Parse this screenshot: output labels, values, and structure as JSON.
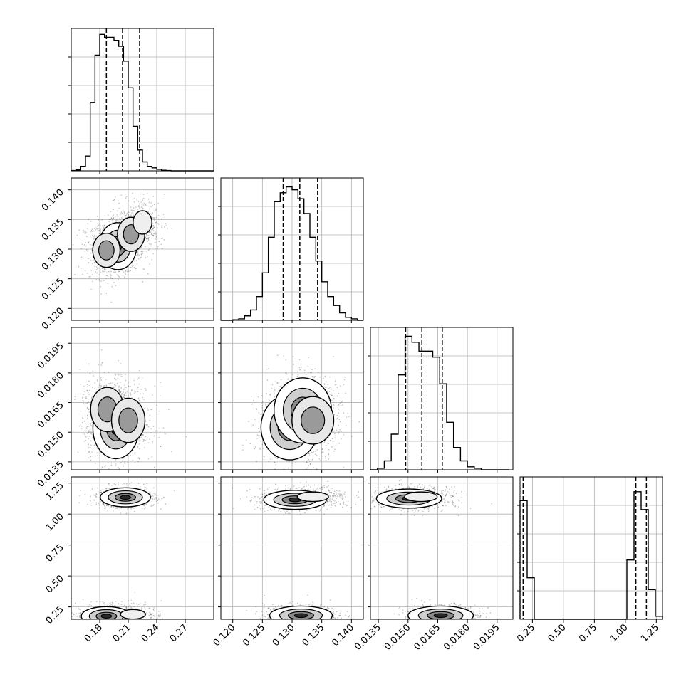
{
  "chart_data": {
    "type": "corner",
    "grid": true,
    "parameters": [
      {
        "range": [
          0.15,
          0.3
        ],
        "ticks": [
          0.18,
          0.21,
          0.24,
          0.27
        ],
        "tick_labels": [
          "0.18",
          "0.21",
          "0.24",
          "0.27"
        ],
        "quantiles": [
          0.187,
          0.204,
          0.222
        ],
        "histogram": {
          "edges": [
            0.15,
            0.155,
            0.16,
            0.165,
            0.17,
            0.175,
            0.18,
            0.185,
            0.19,
            0.195,
            0.2,
            0.205,
            0.21,
            0.215,
            0.22,
            0.225,
            0.23,
            0.235,
            0.24,
            0.245,
            0.25,
            0.255,
            0.26,
            0.265,
            0.27,
            0.275,
            0.28,
            0.285,
            0.29,
            0.295,
            0.3
          ],
          "counts": [
            0.01,
            0.03,
            0.15,
            0.5,
            2.3,
            3.9,
            4.6,
            4.5,
            4.5,
            4.4,
            4.2,
            3.7,
            2.8,
            1.5,
            0.7,
            0.3,
            0.15,
            0.1,
            0.05,
            0.02,
            0.01,
            0,
            0,
            0,
            0,
            0,
            0,
            0,
            0,
            0
          ],
          "ymax": 4.8
        }
      },
      {
        "range": [
          0.118,
          0.142
        ],
        "ticks": [
          0.12,
          0.125,
          0.13,
          0.135,
          0.14
        ],
        "tick_labels": [
          "0.120",
          "0.125",
          "0.130",
          "0.135",
          "0.140"
        ],
        "quantiles": [
          0.1285,
          0.1313,
          0.1343
        ],
        "histogram": {
          "edges": [
            0.118,
            0.119,
            0.12,
            0.121,
            0.122,
            0.123,
            0.124,
            0.125,
            0.126,
            0.127,
            0.128,
            0.129,
            0.13,
            0.131,
            0.132,
            0.133,
            0.134,
            0.135,
            0.136,
            0.137,
            0.138,
            0.139,
            0.14,
            0.141,
            0.142
          ],
          "counts": [
            0.0,
            0.0,
            0.02,
            0.05,
            0.15,
            0.35,
            0.8,
            1.6,
            2.8,
            4.0,
            4.3,
            4.5,
            4.4,
            4.1,
            3.6,
            2.8,
            2.0,
            1.3,
            0.8,
            0.5,
            0.25,
            0.1,
            0.05,
            0.0
          ],
          "ymax": 4.8
        }
      },
      {
        "range": [
          0.0131,
          0.0203
        ],
        "ticks": [
          0.0135,
          0.015,
          0.0165,
          0.018,
          0.0195
        ],
        "tick_labels": [
          "0.0135",
          "0.0150",
          "0.0165",
          "0.0180",
          "0.0195"
        ],
        "quantiles": [
          0.01488,
          0.0157,
          0.01673
        ],
        "histogram": {
          "edges": [
            0.0131,
            0.01345,
            0.0138,
            0.01415,
            0.0145,
            0.01485,
            0.0152,
            0.01555,
            0.0159,
            0.01625,
            0.0166,
            0.01695,
            0.0173,
            0.01765,
            0.018,
            0.01835,
            0.0187,
            0.01905,
            0.0194,
            0.01975,
            0.0201
          ],
          "counts": [
            0.0,
            0.05,
            0.3,
            1.2,
            3.2,
            4.5,
            4.3,
            4.0,
            4.0,
            3.8,
            2.9,
            1.6,
            0.75,
            0.3,
            0.1,
            0.05,
            0.0,
            0.0,
            0.0,
            0.0
          ],
          "ymax": 4.8
        }
      },
      {
        "range": [
          0.15,
          1.3
        ],
        "ticks": [
          0.25,
          0.5,
          0.75,
          1.0,
          1.25
        ],
        "tick_labels": [
          "0.25",
          "0.50",
          "0.75",
          "1.00",
          "1.25"
        ],
        "quantiles": [
          0.175,
          1.085,
          1.17
        ],
        "histogram": {
          "edges": [
            0.15,
            0.2075,
            0.265,
            0.3225,
            0.38,
            0.4375,
            0.495,
            0.5525,
            0.61,
            0.6675,
            0.725,
            0.7825,
            0.84,
            0.8975,
            0.955,
            1.0125,
            1.07,
            1.1275,
            1.185,
            1.2425,
            1.3
          ],
          "counts": [
            4.0,
            1.4,
            0,
            0,
            0,
            0,
            0,
            0,
            0,
            0,
            0,
            0,
            0,
            0,
            0,
            2.0,
            4.3,
            3.7,
            1.0,
            0.1
          ],
          "ymax": 4.8
        }
      }
    ],
    "pairs": [
      {
        "row": 1,
        "col": 0,
        "centers": [
          [
            0.199,
            0.1305,
            1.0
          ],
          [
            0.187,
            0.1298,
            0.6
          ],
          [
            0.213,
            0.1325,
            0.6
          ],
          [
            0.225,
            0.1345,
            0.35
          ]
        ],
        "spread": [
          0.009,
          0.0018
        ]
      },
      {
        "row": 2,
        "col": 0,
        "centers": [
          [
            0.197,
            0.0152,
            1.0
          ],
          [
            0.188,
            0.01615,
            0.7
          ],
          [
            0.21,
            0.0156,
            0.5
          ]
        ],
        "spread": [
          0.011,
          0.0007
        ]
      },
      {
        "row": 2,
        "col": 1,
        "centers": [
          [
            0.1296,
            0.01525,
            1.0
          ],
          [
            0.1318,
            0.0161,
            0.8
          ],
          [
            0.1335,
            0.0156,
            0.5
          ]
        ],
        "spread": [
          0.0022,
          0.00075
        ]
      },
      {
        "row": 3,
        "col": 0,
        "centers": [
          [
            0.207,
            1.135,
            1.0
          ],
          [
            0.187,
            0.175,
            0.9
          ],
          [
            0.215,
            0.19,
            0.3
          ]
        ],
        "spread": [
          0.012,
          0.035
        ]
      },
      {
        "row": 3,
        "col": 1,
        "centers": [
          [
            0.1305,
            1.115,
            1.0
          ],
          [
            0.1315,
            0.18,
            0.9
          ],
          [
            0.1335,
            1.14,
            0.4
          ]
        ],
        "spread": [
          0.0024,
          0.035
        ]
      },
      {
        "row": 3,
        "col": 2,
        "centers": [
          [
            0.01505,
            1.125,
            1.0
          ],
          [
            0.01665,
            0.18,
            0.9
          ],
          [
            0.01565,
            1.14,
            0.4
          ]
        ],
        "spread": [
          0.00075,
          0.035
        ]
      }
    ]
  }
}
